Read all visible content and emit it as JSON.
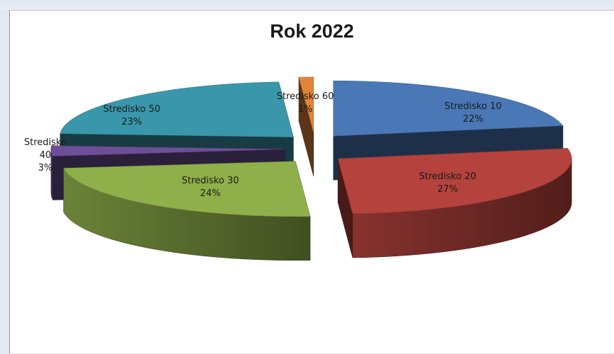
{
  "chart_data": {
    "type": "pie",
    "style": "3d-exploded",
    "title": "Rok 2022",
    "slices": [
      {
        "name": "Stredisko 10",
        "label_lines": [
          "Stredisko 10",
          "22%"
        ],
        "percent": 22,
        "color": "#4a78b6"
      },
      {
        "name": "Stredisko 20",
        "label_lines": [
          "Stredisko 20",
          "27%"
        ],
        "percent": 27,
        "color": "#b5423d"
      },
      {
        "name": "Stredisko 30",
        "label_lines": [
          "Stredisko 30",
          "24%"
        ],
        "percent": 24,
        "color": "#8faf4a"
      },
      {
        "name": "Stredisko 40",
        "label_lines": [
          "Stredisko",
          "40",
          "3%"
        ],
        "percent": 3,
        "color": "#6c4f96"
      },
      {
        "name": "Stredisko 50",
        "label_lines": [
          "Stredisko 50",
          "23%"
        ],
        "percent": 23,
        "color": "#3a97ab"
      },
      {
        "name": "Stredisko 60",
        "label_lines": [
          "Stredisko 60",
          "1%"
        ],
        "percent": 1,
        "color": "#e2843a"
      }
    ],
    "legend": "none"
  }
}
